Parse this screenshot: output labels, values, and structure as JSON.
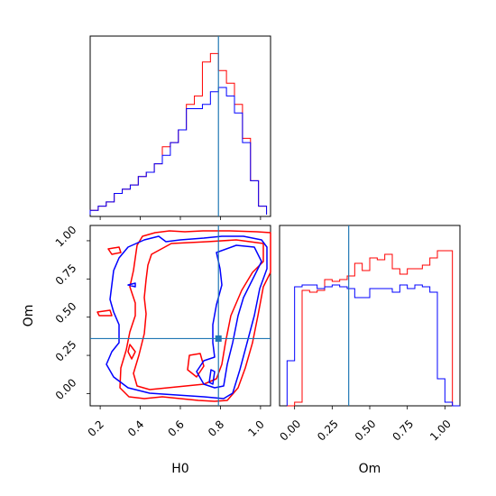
{
  "chart_data": {
    "type": "corner",
    "parameters": [
      "H0",
      "Om"
    ],
    "colors": {
      "red_run": "#ff0000",
      "blue_run": "#0000ff",
      "truth": "#1f77b4"
    },
    "truth": {
      "H0": 0.79,
      "Om": 0.36
    },
    "panels": [
      {
        "id": "hist-H0",
        "type": "step-histogram",
        "x_range": [
          0.15,
          1.05
        ],
        "bins_edges": [
          0.15,
          0.19,
          0.23,
          0.27,
          0.31,
          0.35,
          0.39,
          0.43,
          0.47,
          0.51,
          0.55,
          0.59,
          0.63,
          0.67,
          0.71,
          0.75,
          0.79,
          0.83,
          0.87,
          0.91,
          0.95,
          0.99,
          1.03
        ],
        "series": [
          {
            "name": "red",
            "color": "#ff0000",
            "values": [
              1,
              2,
              3,
              5,
              6,
              7,
              9,
              10,
              12,
              16,
              17,
              20,
              26,
              28,
              36,
              38,
              34,
              31,
              26,
              18,
              8,
              2
            ]
          },
          {
            "name": "blue",
            "color": "#0000ff",
            "values": [
              1,
              2,
              3,
              5,
              6,
              7,
              9,
              10,
              12,
              14,
              17,
              20,
              25,
              25,
              26,
              29,
              30,
              28,
              24,
              17,
              8,
              2
            ]
          }
        ],
        "x_ticks": [
          0.2,
          0.4,
          0.6,
          0.8,
          1.0
        ]
      },
      {
        "id": "contour-H0-Om",
        "type": "contour",
        "x_range": [
          0.15,
          1.05
        ],
        "y_range": [
          -0.08,
          1.1
        ],
        "xlabel": "H0",
        "ylabel": "Om",
        "x_ticks": [
          "0.2",
          "0.4",
          "0.6",
          "0.8",
          "1.0"
        ],
        "y_ticks": [
          "0.00",
          "0.25",
          "0.50",
          "0.75",
          "1.00"
        ],
        "x_tick_values": [
          0.2,
          0.4,
          0.6,
          0.8,
          1.0
        ],
        "y_tick_values": [
          0.0,
          0.25,
          0.5,
          0.75,
          1.0
        ]
      },
      {
        "id": "hist-Om",
        "type": "step-histogram",
        "x_range": [
          -0.1,
          1.1
        ],
        "xlabel": "Om",
        "x_ticks": [
          "0.00",
          "0.25",
          "0.50",
          "0.75",
          "1.00"
        ],
        "x_tick_values": [
          0.0,
          0.25,
          0.5,
          0.75,
          1.0
        ],
        "bins_edges": [
          -0.05,
          0.0,
          0.05,
          0.1,
          0.15,
          0.2,
          0.25,
          0.3,
          0.35,
          0.4,
          0.45,
          0.5,
          0.55,
          0.6,
          0.65,
          0.7,
          0.75,
          0.8,
          0.85,
          0.9,
          0.95,
          1.0,
          1.05,
          1.1
        ],
        "series": [
          {
            "name": "red",
            "color": "#ff0000",
            "values": [
              0,
              0.02,
              0.64,
              0.63,
              0.64,
              0.7,
              0.69,
              0.7,
              0.72,
              0.79,
              0.75,
              0.82,
              0.81,
              0.84,
              0.76,
              0.73,
              0.76,
              0.76,
              0.78,
              0.82,
              0.86,
              0.86,
              0
            ]
          },
          {
            "name": "blue",
            "color": "#0000ff",
            "values": [
              0.25,
              0.66,
              0.67,
              0.67,
              0.65,
              0.66,
              0.67,
              0.66,
              0.65,
              0.6,
              0.6,
              0.65,
              0.65,
              0.65,
              0.63,
              0.67,
              0.65,
              0.67,
              0.66,
              0.63,
              0.15,
              0.02,
              0
            ]
          }
        ]
      }
    ]
  }
}
